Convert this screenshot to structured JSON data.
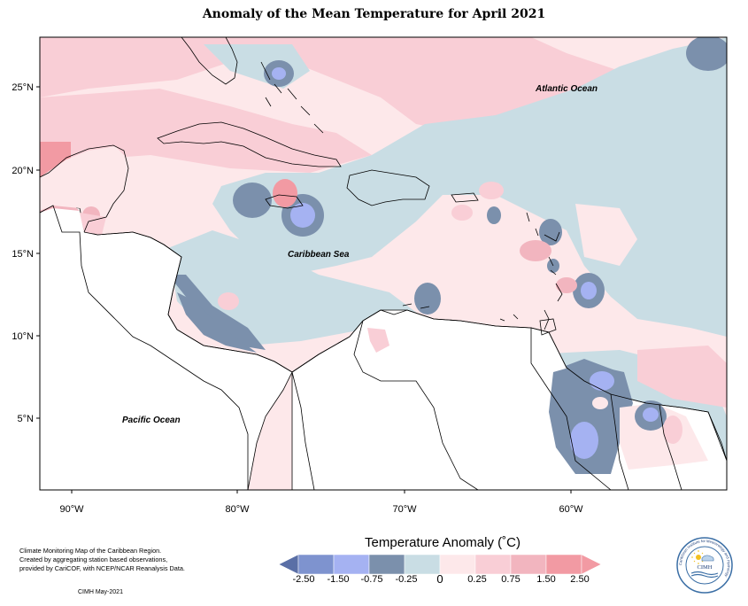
{
  "title": "Anomaly of the Mean Temperature for April 2021",
  "map": {
    "ocean_labels": {
      "atlantic": "Atlantic Ocean",
      "caribbean": "Caribbean Sea",
      "pacific": "Pacific Ocean"
    },
    "lat_ticks": [
      "25°N",
      "20°N",
      "15°N",
      "10°N",
      "5°N"
    ],
    "lon_ticks": [
      "90°W",
      "80°W",
      "70°W",
      "60°W"
    ],
    "anomaly_colors": {
      "le_-2.50": "#5a6fa6",
      "-2.50_-1.50": "#7e93cf",
      "-1.50_-0.75": "#a5b2f2",
      "-0.75_-0.25": "#7b90ac",
      "-0.25_0": "#c9dde4",
      "0_0.25": "#fde8ea",
      "0.25_0.75": "#f9ced6",
      "0.75_1.50": "#f2b5bf",
      "ge_2.50": "#f29aa3"
    }
  },
  "legend": {
    "title": "Temperature Anomaly (˚C)",
    "labels": [
      "-2.50",
      "-1.50",
      "-0.75",
      "-0.25",
      "0",
      "0.25",
      "0.75",
      "1.50",
      "2.50"
    ]
  },
  "credits": {
    "lines": [
      "Climate Monitoring Map of the Caribbean Region.",
      "Created by aggregating station based observations,",
      "provided by CariCOF, with NCEP/NCAR Reanalysis Data."
    ],
    "date": "CIMH May-2021"
  },
  "logo": {
    "name": "CIMH",
    "ring_text": "Caribbean Institute for Meteorology and Hydrology"
  }
}
